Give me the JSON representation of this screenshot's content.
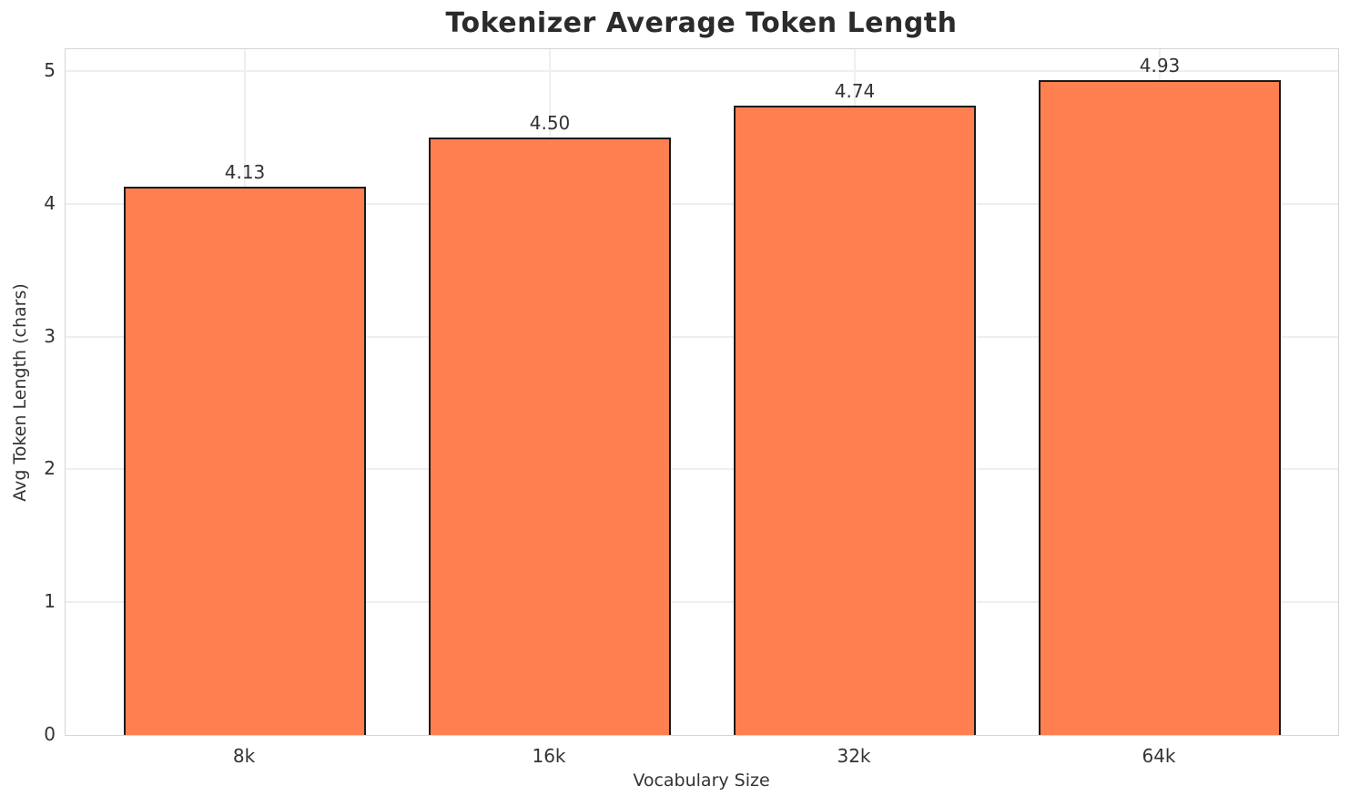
{
  "chart_data": {
    "type": "bar",
    "title": "Tokenizer Average Token Length",
    "xlabel": "Vocabulary Size",
    "ylabel": "Avg Token Length (chars)",
    "categories": [
      "8k",
      "16k",
      "32k",
      "64k"
    ],
    "values": [
      4.13,
      4.5,
      4.74,
      4.93
    ],
    "value_labels": [
      "4.13",
      "4.50",
      "4.74",
      "4.93"
    ],
    "yticks": [
      0,
      1,
      2,
      3,
      4,
      5
    ],
    "ylim": [
      0,
      5.165
    ],
    "grid": "on",
    "legend": "none",
    "colors": {
      "bar_fill": "#ff7f50",
      "bar_edge": "#1a1a1a",
      "grid": "#efefef",
      "spine": "#d5d5d5",
      "text": "#333333",
      "title_text": "#2b2b2b"
    }
  }
}
